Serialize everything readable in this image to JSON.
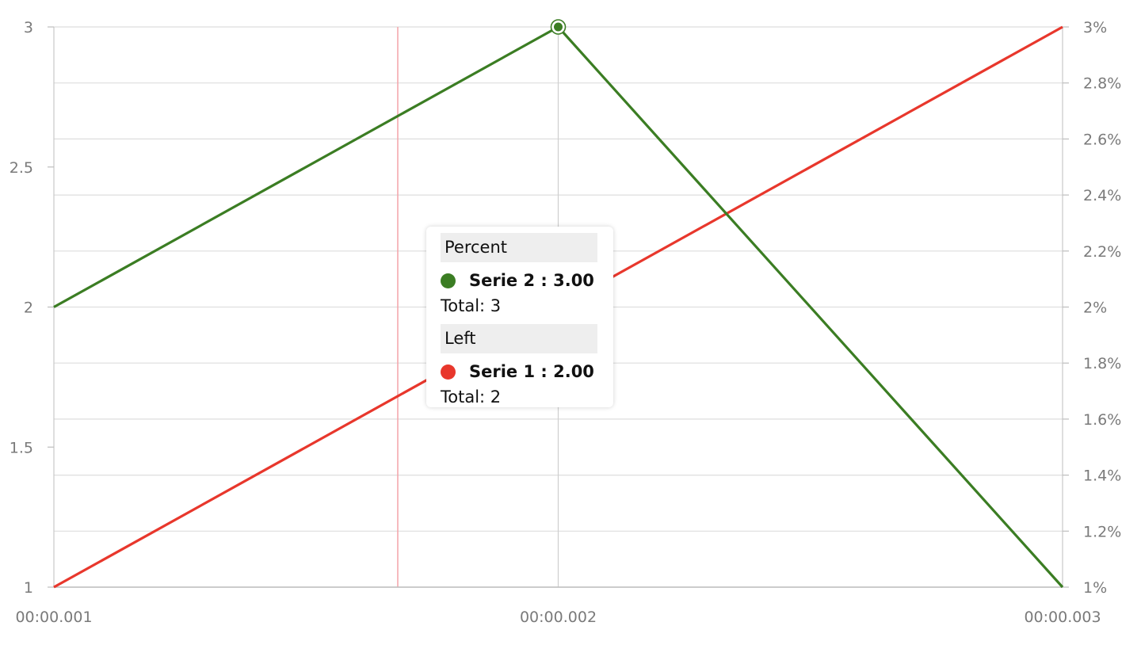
{
  "chart_data": {
    "type": "line",
    "x": [
      "00:00.001",
      "00:00.002",
      "00:00.003"
    ],
    "series": [
      {
        "name": "Serie 1",
        "axis": "left",
        "color": "#e8372c",
        "values": [
          1,
          2,
          3
        ]
      },
      {
        "name": "Serie 2",
        "axis": "right",
        "color": "#3b7d23",
        "values": [
          2,
          3,
          1
        ]
      }
    ],
    "y_left": {
      "ticks": [
        "1",
        "1.5",
        "2",
        "2.5",
        "3"
      ],
      "range": [
        1,
        3
      ]
    },
    "y_right": {
      "ticks": [
        "1%",
        "1.2%",
        "1.4%",
        "1.6%",
        "1.8%",
        "2%",
        "2.2%",
        "2.4%",
        "2.6%",
        "2.8%",
        "3%"
      ],
      "range": [
        1,
        3
      ]
    },
    "grid": true,
    "crosshair_x": "00:00.002",
    "cursor_line_color": "#f4a3a8",
    "highlighted_point": {
      "series": "Serie 2",
      "x": "00:00.002",
      "y": 3
    }
  },
  "tooltip": {
    "groups": [
      {
        "header": "Percent",
        "series_label": "Serie 2 : 3.00",
        "color": "#3b7d23",
        "total": "Total: 3"
      },
      {
        "header": "Left",
        "series_label": "Serie 1 : 2.00",
        "color": "#e8372c",
        "total": "Total: 2"
      }
    ]
  }
}
